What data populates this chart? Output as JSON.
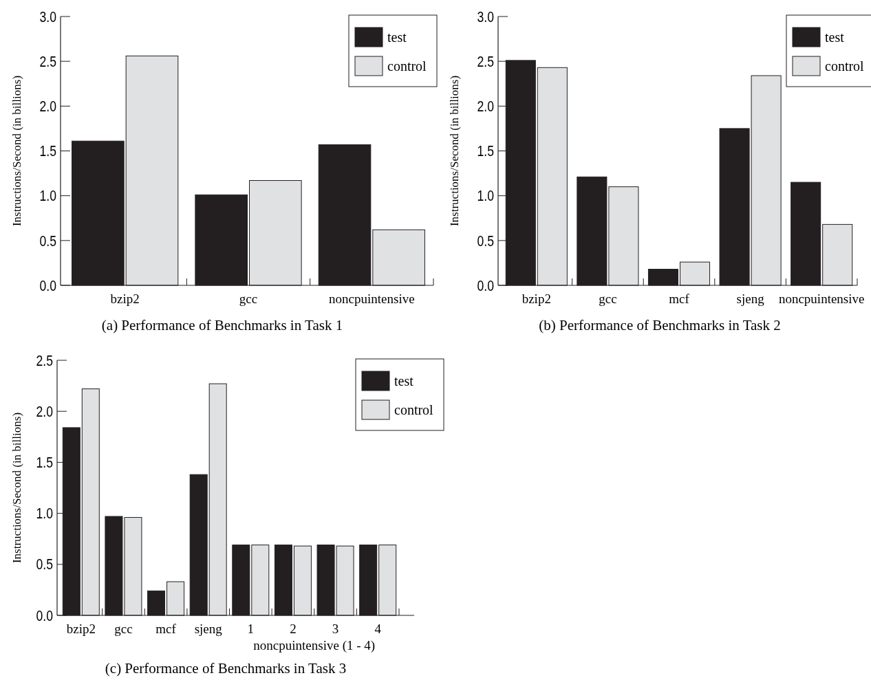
{
  "chart_data": [
    {
      "type": "bar",
      "title": "(a) Performance of Benchmarks in Task 1",
      "ylabel": "Instructions/Second (in billions)",
      "categories": [
        "bzip2",
        "gcc",
        "noncpuintensive"
      ],
      "series": [
        {
          "name": "test",
          "color": "#231f20",
          "values": [
            1.61,
            1.01,
            1.57
          ]
        },
        {
          "name": "control",
          "color": "#e0e1e3",
          "values": [
            2.56,
            1.17,
            0.62
          ]
        }
      ],
      "ylim": [
        0,
        3
      ],
      "yticks": [
        {
          "value": 0,
          "label": "0.0"
        },
        {
          "value": 0.5,
          "label": "0.5"
        },
        {
          "value": 1,
          "label": "1.0"
        },
        {
          "value": 1.5,
          "label": "1.5"
        },
        {
          "value": 2,
          "label": "2.0"
        },
        {
          "value": 2.5,
          "label": "2.5"
        },
        {
          "value": 3,
          "label": "3.0"
        }
      ],
      "legend": "top right",
      "grid": false
    },
    {
      "type": "bar",
      "title": "(b) Performance of Benchmarks in Task 2",
      "ylabel": "Instructions/Second (in billions)",
      "categories": [
        "bzip2",
        "gcc",
        "mcf",
        "sjeng",
        "noncpuintensive"
      ],
      "series": [
        {
          "name": "test",
          "color": "#231f20",
          "values": [
            2.51,
            1.21,
            0.18,
            1.75,
            1.15
          ]
        },
        {
          "name": "control",
          "color": "#e0e1e3",
          "values": [
            2.43,
            1.1,
            0.26,
            2.34,
            0.68
          ]
        }
      ],
      "ylim": [
        0,
        3
      ],
      "yticks": [
        {
          "value": 0,
          "label": "0.0"
        },
        {
          "value": 0.5,
          "label": "0.5"
        },
        {
          "value": 1,
          "label": "1.0"
        },
        {
          "value": 1.5,
          "label": "1.5"
        },
        {
          "value": 2,
          "label": "2.0"
        },
        {
          "value": 2.5,
          "label": "2.5"
        },
        {
          "value": 3,
          "label": "3.0"
        }
      ],
      "legend": "top right",
      "grid": false
    },
    {
      "type": "bar",
      "title": "(c) Performance of Benchmarks in Task 3",
      "ylabel": "Instructions/Second (in billions)",
      "xlabel": "noncpuintensive (1 - 4)",
      "categories": [
        "bzip2",
        "gcc",
        "mcf",
        "sjeng",
        "1",
        "2",
        "3",
        "4"
      ],
      "series": [
        {
          "name": "test",
          "color": "#231f20",
          "values": [
            1.84,
            0.97,
            0.24,
            1.38,
            0.69,
            0.69,
            0.69,
            0.69
          ]
        },
        {
          "name": "control",
          "color": "#e0e1e3",
          "values": [
            2.22,
            0.96,
            0.33,
            2.27,
            0.69,
            0.68,
            0.68,
            0.69
          ]
        }
      ],
      "ylim": [
        0,
        2.5
      ],
      "yticks": [
        {
          "value": 0,
          "label": "0.0"
        },
        {
          "value": 0.5,
          "label": "0.5"
        },
        {
          "value": 1,
          "label": "1.0"
        },
        {
          "value": 1.5,
          "label": "1.5"
        },
        {
          "value": 2,
          "label": "2.0"
        },
        {
          "value": 2.5,
          "label": "2.5"
        }
      ],
      "legend": "top right",
      "grid": false
    }
  ]
}
